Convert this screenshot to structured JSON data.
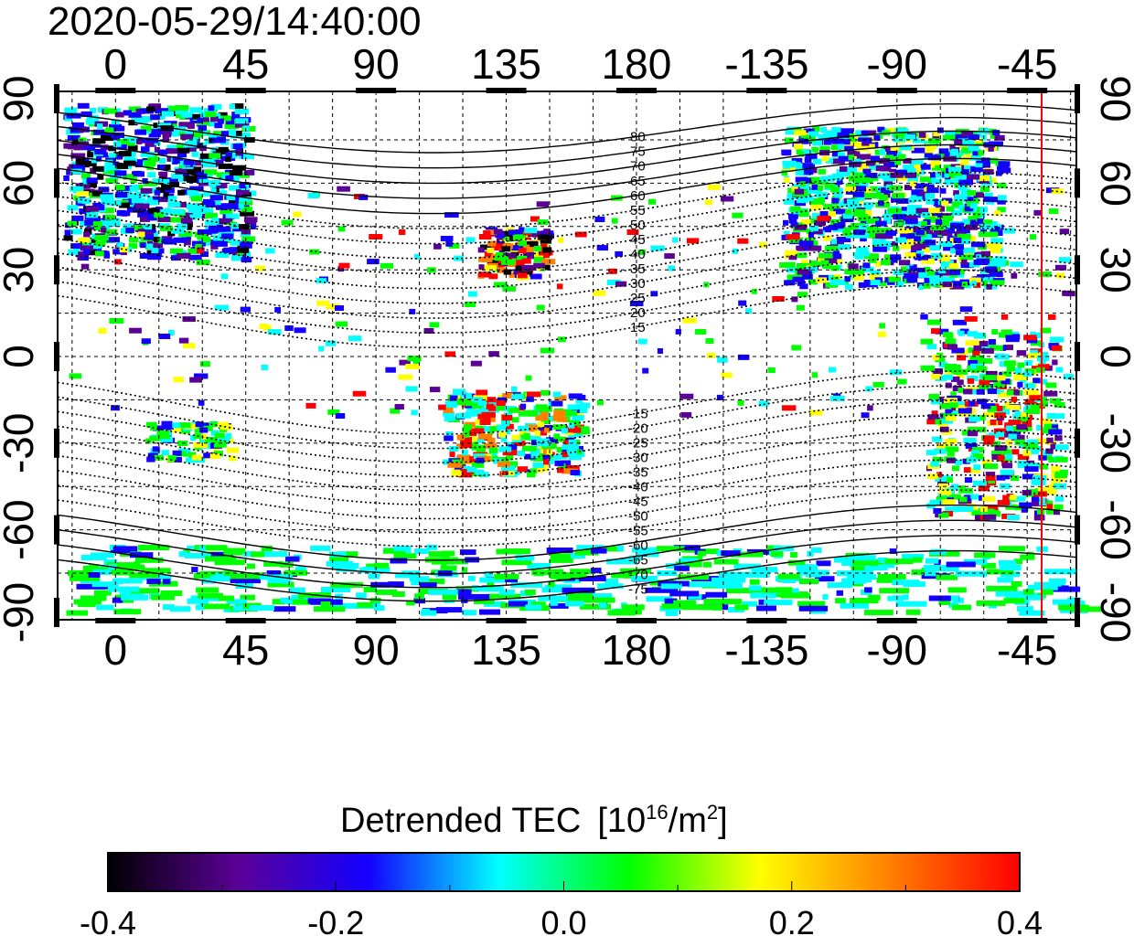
{
  "title": "2020-05-29/14:40:00",
  "map": {
    "lon_ticks": [
      0,
      45,
      90,
      135,
      180,
      -135,
      -90,
      -45
    ],
    "lat_ticks": [
      90,
      60,
      30,
      0,
      -30,
      -60,
      -90
    ],
    "lon_range": [
      -20,
      332
    ],
    "lat_range": [
      -90,
      90
    ],
    "marker_longitude": -40,
    "marker_color": "#ff0000",
    "contour_labels_north": [
      "80",
      "75",
      "70",
      "65",
      "60",
      "55",
      "50",
      "45",
      "40",
      "35",
      "30",
      "25",
      "20",
      "15"
    ],
    "contour_labels_south": [
      "-15",
      "-20",
      "-25",
      "-30",
      "-35",
      "-40",
      "-45",
      "-50",
      "-55",
      "-60",
      "-65",
      "-70",
      "-75"
    ]
  },
  "colorbar": {
    "title": "Detrended TEC",
    "unit_prefix": "[10",
    "unit_exp": "16",
    "unit_mid": "/m",
    "unit_exp2": "2",
    "unit_suffix": "]",
    "min": -0.4,
    "max": 0.4,
    "tick_labels": [
      "-0.4",
      "-0.2",
      "0.0",
      "0.2",
      "0.4"
    ],
    "colors": [
      "#000000",
      "#5a0096",
      "#1400ff",
      "#00ffff",
      "#00ff00",
      "#ffff00",
      "#ff8000",
      "#ff0000"
    ]
  }
}
